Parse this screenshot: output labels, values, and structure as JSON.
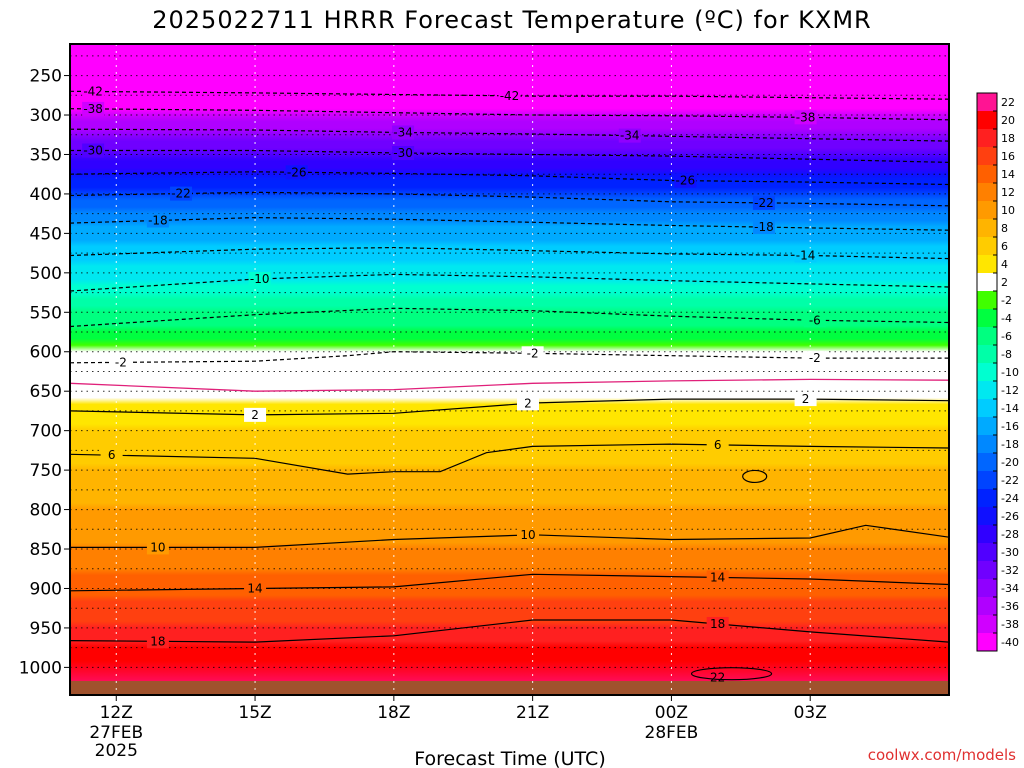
{
  "chart_data": {
    "type": "heatmap",
    "title": "2025022711 HRRR Forecast Temperature (ºC) for KXMR",
    "xlabel": "Forecast Time (UTC)",
    "ylabel": "",
    "x_range": [
      11,
      30
    ],
    "y_range_hPa": [
      210,
      1035
    ],
    "x_ticks": [
      {
        "x": 12,
        "label": "12Z",
        "sub1": "27FEB",
        "sub2": "2025"
      },
      {
        "x": 15,
        "label": "15Z",
        "sub1": "",
        "sub2": ""
      },
      {
        "x": 18,
        "label": "18Z",
        "sub1": "",
        "sub2": ""
      },
      {
        "x": 21,
        "label": "21Z",
        "sub1": "",
        "sub2": ""
      },
      {
        "x": 24,
        "label": "00Z",
        "sub1": "28FEB",
        "sub2": ""
      },
      {
        "x": 27,
        "label": "03Z",
        "sub1": "",
        "sub2": ""
      }
    ],
    "y_ticks": [
      250,
      300,
      350,
      400,
      450,
      500,
      550,
      600,
      650,
      700,
      750,
      800,
      850,
      900,
      950,
      1000
    ],
    "dotted_levels": [
      225,
      250,
      275,
      300,
      325,
      350,
      375,
      400,
      425,
      450,
      475,
      500,
      525,
      550,
      575,
      600,
      625,
      650,
      675,
      700,
      725,
      750,
      775,
      800,
      825,
      850,
      875,
      900,
      925,
      950,
      975,
      1000
    ],
    "temperature_profile": [
      {
        "p": 210,
        "t": -56
      },
      {
        "p": 250,
        "t": -47
      },
      {
        "p": 300,
        "t": -38
      },
      {
        "p": 350,
        "t": -30
      },
      {
        "p": 400,
        "t": -22
      },
      {
        "p": 450,
        "t": -16
      },
      {
        "p": 500,
        "t": -12
      },
      {
        "p": 550,
        "t": -7
      },
      {
        "p": 600,
        "t": -2
      },
      {
        "p": 650,
        "t": 2
      },
      {
        "p": 700,
        "t": 5
      },
      {
        "p": 750,
        "t": 7
      },
      {
        "p": 800,
        "t": 9
      },
      {
        "p": 850,
        "t": 11
      },
      {
        "p": 900,
        "t": 14
      },
      {
        "p": 950,
        "t": 17
      },
      {
        "p": 1000,
        "t": 21
      }
    ],
    "contours": [
      {
        "value": -42,
        "style": "dashed",
        "points": [
          [
            11,
            270
          ],
          [
            15,
            272
          ],
          [
            18,
            274
          ],
          [
            21,
            276
          ],
          [
            24,
            276
          ],
          [
            27,
            278
          ],
          [
            30,
            280
          ]
        ],
        "labels": [
          [
            11.5,
            "-42"
          ],
          [
            20.5,
            "-42"
          ]
        ]
      },
      {
        "value": -38,
        "style": "dashed",
        "points": [
          [
            11,
            292
          ],
          [
            15,
            294
          ],
          [
            18,
            297
          ],
          [
            21,
            300
          ],
          [
            24,
            301
          ],
          [
            27,
            303
          ],
          [
            30,
            306
          ]
        ],
        "labels": [
          [
            11.5,
            "-38"
          ],
          [
            26.9,
            "-38"
          ]
        ]
      },
      {
        "value": -34,
        "style": "dashed",
        "points": [
          [
            11,
            318
          ],
          [
            15,
            319
          ],
          [
            18,
            322
          ],
          [
            21,
            324
          ],
          [
            24,
            327
          ],
          [
            27,
            330
          ],
          [
            30,
            333
          ]
        ],
        "labels": [
          [
            18.2,
            "-34"
          ],
          [
            23.1,
            "-34"
          ]
        ]
      },
      {
        "value": -30,
        "style": "dashed",
        "points": [
          [
            11,
            345
          ],
          [
            15,
            345
          ],
          [
            18,
            348
          ],
          [
            21,
            350
          ],
          [
            24,
            352
          ],
          [
            27,
            356
          ],
          [
            30,
            360
          ]
        ],
        "labels": [
          [
            11.5,
            "-30"
          ],
          [
            18.2,
            "-30"
          ]
        ]
      },
      {
        "value": -26,
        "style": "dashed",
        "points": [
          [
            11,
            375
          ],
          [
            15,
            372
          ],
          [
            18,
            374
          ],
          [
            21,
            377
          ],
          [
            24,
            383
          ],
          [
            27,
            385
          ],
          [
            30,
            388
          ]
        ],
        "labels": [
          [
            15.9,
            "-26"
          ],
          [
            24.3,
            "-26"
          ]
        ]
      },
      {
        "value": -22,
        "style": "dashed",
        "points": [
          [
            11,
            402
          ],
          [
            15,
            398
          ],
          [
            18,
            400
          ],
          [
            21,
            404
          ],
          [
            24,
            410
          ],
          [
            27,
            412
          ],
          [
            30,
            415
          ]
        ],
        "labels": [
          [
            13.4,
            "-22"
          ],
          [
            26.0,
            "-22"
          ]
        ]
      },
      {
        "value": -18,
        "style": "dashed",
        "points": [
          [
            11,
            437
          ],
          [
            15,
            430
          ],
          [
            18,
            432
          ],
          [
            21,
            436
          ],
          [
            24,
            440
          ],
          [
            27,
            443
          ],
          [
            30,
            446
          ]
        ],
        "labels": [
          [
            12.9,
            "-18"
          ],
          [
            26.0,
            "-18"
          ]
        ]
      },
      {
        "value": -14,
        "style": "dashed",
        "points": [
          [
            11,
            478
          ],
          [
            15,
            470
          ],
          [
            18,
            468
          ],
          [
            21,
            472
          ],
          [
            24,
            476
          ],
          [
            27,
            478
          ],
          [
            30,
            482
          ]
        ],
        "labels": [
          [
            26.9,
            "-14"
          ]
        ]
      },
      {
        "value": -10,
        "style": "dashed",
        "points": [
          [
            11,
            523
          ],
          [
            15,
            508
          ],
          [
            18,
            502
          ],
          [
            21,
            505
          ],
          [
            24,
            510
          ],
          [
            27,
            514
          ],
          [
            30,
            518
          ]
        ],
        "labels": [
          [
            15.1,
            "-10"
          ]
        ]
      },
      {
        "value": -6,
        "style": "dashed",
        "points": [
          [
            11,
            568
          ],
          [
            15,
            553
          ],
          [
            18,
            545
          ],
          [
            21,
            548
          ],
          [
            24,
            555
          ],
          [
            27,
            560
          ],
          [
            30,
            563
          ]
        ],
        "labels": [
          [
            27.1,
            "-6"
          ]
        ]
      },
      {
        "value": -2,
        "style": "dashed",
        "points": [
          [
            11,
            614
          ],
          [
            15,
            612
          ],
          [
            17,
            605
          ],
          [
            18,
            600
          ],
          [
            21,
            602
          ],
          [
            24,
            605
          ],
          [
            27,
            608
          ],
          [
            30,
            608
          ]
        ],
        "labels": [
          [
            12.1,
            "-2"
          ],
          [
            21.0,
            "-2"
          ],
          [
            27.1,
            "-2"
          ]
        ]
      },
      {
        "value": 0,
        "style": "magenta",
        "points": [
          [
            11,
            640
          ],
          [
            15,
            650
          ],
          [
            18,
            648
          ],
          [
            21,
            640
          ],
          [
            24,
            637
          ],
          [
            27,
            635
          ],
          [
            30,
            636
          ]
        ],
        "labels": []
      },
      {
        "value": 2,
        "style": "solid",
        "points": [
          [
            11,
            675
          ],
          [
            15,
            680
          ],
          [
            18,
            678
          ],
          [
            21,
            665
          ],
          [
            24,
            660
          ],
          [
            27,
            660
          ],
          [
            30,
            662
          ]
        ],
        "labels": [
          [
            15.0,
            "2"
          ],
          [
            20.9,
            "2"
          ],
          [
            26.9,
            "2"
          ]
        ]
      },
      {
        "value": 6,
        "style": "solid",
        "points": [
          [
            11,
            730
          ],
          [
            15,
            735
          ],
          [
            17,
            755
          ],
          [
            18,
            752
          ],
          [
            19,
            752
          ],
          [
            20,
            728
          ],
          [
            21,
            720
          ],
          [
            24,
            717
          ],
          [
            27,
            720
          ],
          [
            30,
            722
          ]
        ],
        "labels": [
          [
            11.9,
            "6"
          ],
          [
            25.0,
            "6"
          ]
        ]
      },
      {
        "value": 10,
        "style": "solid",
        "points": [
          [
            11,
            848
          ],
          [
            15,
            848
          ],
          [
            18,
            838
          ],
          [
            21,
            832
          ],
          [
            24,
            838
          ],
          [
            27,
            836
          ],
          [
            28.2,
            820
          ],
          [
            30,
            835
          ]
        ],
        "labels": [
          [
            12.9,
            "10"
          ],
          [
            20.9,
            "10"
          ]
        ]
      },
      {
        "value": 14,
        "style": "solid",
        "points": [
          [
            11,
            903
          ],
          [
            15,
            900
          ],
          [
            18,
            898
          ],
          [
            21,
            882
          ],
          [
            24,
            885
          ],
          [
            27,
            888
          ],
          [
            30,
            895
          ]
        ],
        "labels": [
          [
            15.0,
            "14"
          ],
          [
            25.0,
            "14"
          ]
        ]
      },
      {
        "value": 18,
        "style": "solid",
        "points": [
          [
            11,
            966
          ],
          [
            15,
            968
          ],
          [
            18,
            960
          ],
          [
            21,
            940
          ],
          [
            24,
            940
          ],
          [
            27,
            955
          ],
          [
            30,
            968
          ]
        ],
        "labels": [
          [
            12.9,
            "18"
          ],
          [
            25.0,
            "18"
          ]
        ]
      }
    ],
    "extra_labels": [
      [
        25.0,
        1013,
        "22"
      ]
    ],
    "colorbar": {
      "labels": [
        "22",
        "20",
        "18",
        "16",
        "14",
        "12",
        "10",
        "8",
        "6",
        "4",
        "2",
        "-2",
        "-4",
        "-6",
        "-8",
        "-10",
        "-12",
        "-14",
        "-16",
        "-18",
        "-20",
        "-22",
        "-24",
        "-26",
        "-28",
        "-30",
        "-32",
        "-34",
        "-36",
        "-38",
        "-40"
      ],
      "colors": [
        "#ff1493",
        "#ff0000",
        "#ff2020",
        "#ff4010",
        "#ff6000",
        "#ff8000",
        "#ff9a00",
        "#ffb400",
        "#ffcc00",
        "#ffe600",
        "#ffffff",
        "#40ff00",
        "#00ff40",
        "#00ff80",
        "#00ffa8",
        "#00ffd0",
        "#00e8f0",
        "#00ccff",
        "#00aaff",
        "#0088ff",
        "#0066ff",
        "#0044ff",
        "#0022ff",
        "#1010ff",
        "#3000ff",
        "#5000ff",
        "#7000ff",
        "#9000ff",
        "#b000ff",
        "#d000ff",
        "#ff00ff"
      ]
    }
  },
  "credit": "coolwx.com/models"
}
